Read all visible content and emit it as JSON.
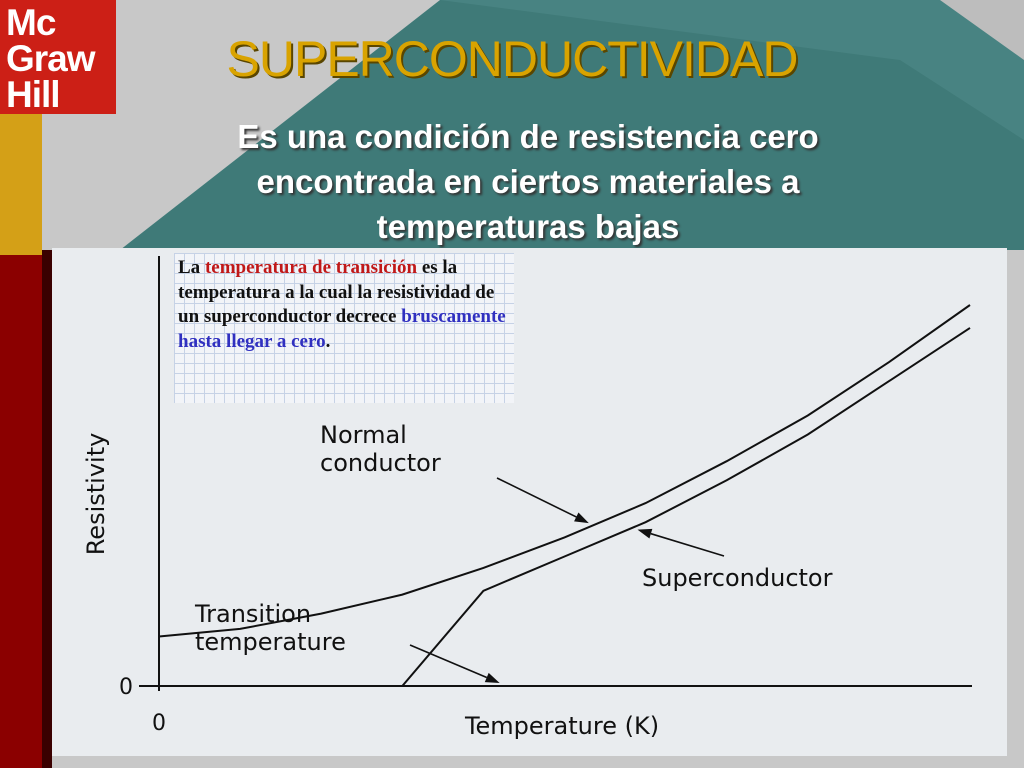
{
  "slide": {
    "logo": {
      "lines": [
        "Mc",
        "Graw",
        "Hill"
      ]
    },
    "title": "SUPERCONDUCTIVIDAD",
    "subtitle": "Es una condición  de resistencia cero encontrada en ciertos materiales a temperaturas bajas",
    "note": {
      "intro": "La ",
      "highlight_red": "temperatura de transición",
      "body": " es la temperatura a la cual la resistividad de un superconductor decrece ",
      "highlight_blue": "bruscamente hasta llegar a cero",
      "end": "."
    },
    "colors": {
      "title": "#d9a300",
      "logo_bg": "#cc1f16",
      "band_gold": "#d4a017",
      "band_red": "#8b0000",
      "background_teal": "#3f7a78"
    }
  },
  "chart_data": {
    "type": "line",
    "title": "",
    "xlabel": "Temperature (K)",
    "ylabel": "Resistivity",
    "x_tick_labels": [
      "0"
    ],
    "y_tick_labels": [
      "0"
    ],
    "x": [
      0,
      0.1,
      0.2,
      0.3,
      0.4,
      0.5,
      0.6,
      0.7,
      0.8,
      0.9,
      1.0
    ],
    "series": [
      {
        "name": "Normal conductor",
        "y": [
          0.13,
          0.15,
          0.19,
          0.24,
          0.31,
          0.39,
          0.48,
          0.59,
          0.71,
          0.85,
          1.0
        ]
      },
      {
        "name": "Superconductor",
        "y": [
          0,
          0,
          0,
          0,
          0.25,
          0.34,
          0.43,
          0.54,
          0.66,
          0.8,
          0.94
        ]
      }
    ],
    "transition_x": 0.42,
    "annotations": [
      {
        "lines": [
          "Normal",
          "conductor"
        ],
        "target_series": 0,
        "target_x": 0.53
      },
      {
        "lines": [
          "Superconductor"
        ],
        "target_series": 1,
        "target_x": 0.59
      },
      {
        "lines": [
          "Transition",
          "temperature"
        ],
        "target_series": 1,
        "target_x": 0.42
      }
    ],
    "grid": false,
    "legend": "none"
  }
}
